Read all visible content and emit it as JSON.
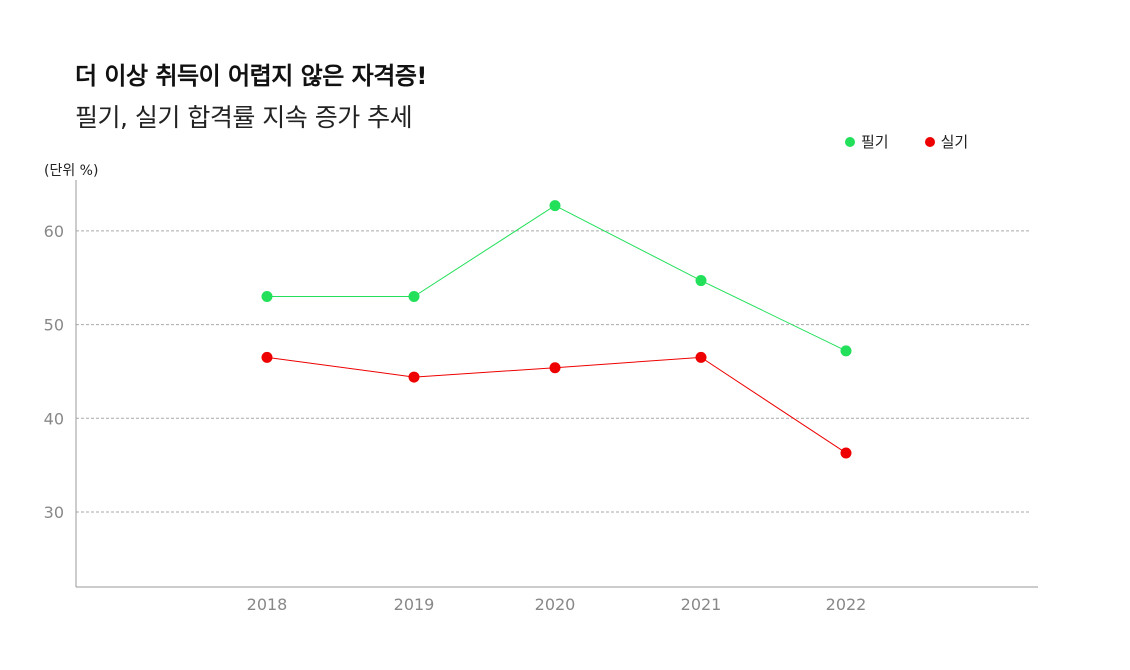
{
  "chart_data": {
    "type": "line",
    "title": "더 이상 취득이 어렵지 않은 자격증!",
    "subtitle": "필기, 실기 합격률 지속 증가 추세",
    "unit_label": "(단위 %)",
    "categories": [
      "2018",
      "2019",
      "2020",
      "2021",
      "2022"
    ],
    "series": [
      {
        "name": "필기",
        "color": "#22e05a",
        "values": [
          53.0,
          53.0,
          62.7,
          54.7,
          47.2
        ]
      },
      {
        "name": "실기",
        "color": "#ee0000",
        "values": [
          46.5,
          44.4,
          45.4,
          46.5,
          36.3
        ]
      }
    ],
    "ylim": [
      22,
      68
    ],
    "yticks": [
      30,
      40,
      50,
      60
    ],
    "grid": true,
    "legend_position": "top-right"
  }
}
